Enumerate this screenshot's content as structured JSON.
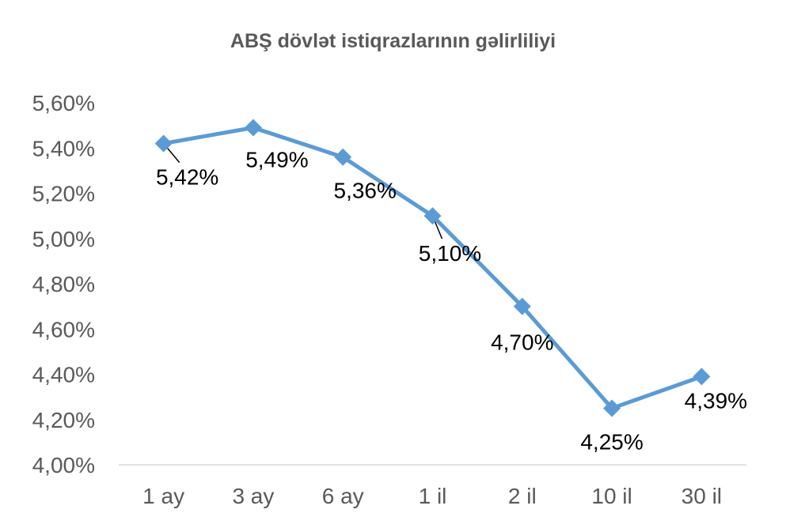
{
  "chart_data": {
    "type": "line",
    "title": "ABŞ dövlət istiqrazlarının gəlirliliyi",
    "xlabel": "",
    "ylabel": "",
    "categories": [
      "1 ay",
      "3 ay",
      "6 ay",
      "1 il",
      "2 il",
      "10 il",
      "30 il"
    ],
    "series": [
      {
        "values": [
          5.42,
          5.49,
          5.36,
          5.1,
          4.7,
          4.25,
          4.39
        ],
        "labels": [
          "5,42%",
          "5,49%",
          "5,36%",
          "5,10%",
          "4,70%",
          "4,25%",
          "4,39%"
        ],
        "color": "#5B9BD5"
      }
    ],
    "ylim": [
      4.0,
      5.6
    ],
    "yticks": [
      "4,00%",
      "4,20%",
      "4,40%",
      "4,60%",
      "4,80%",
      "5,00%",
      "5,20%",
      "5,40%",
      "5,60%"
    ],
    "grid": false,
    "legend": "none"
  }
}
